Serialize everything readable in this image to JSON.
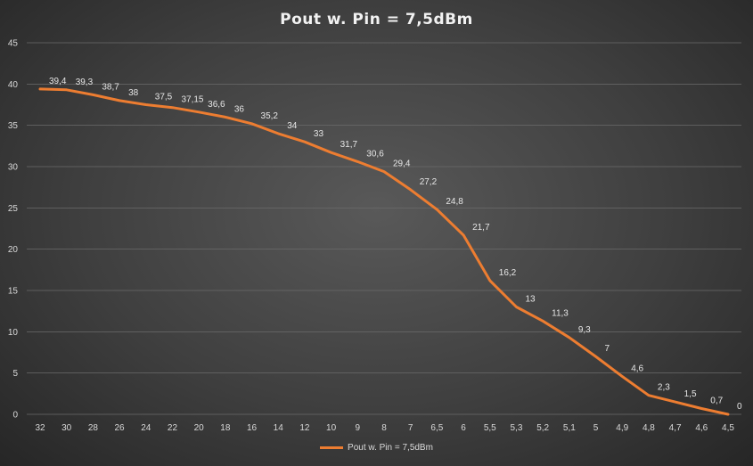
{
  "chart_data": {
    "type": "line",
    "title": "Pout  w. Pin = 7,5dBm",
    "xlabel": "",
    "ylabel": "",
    "ylim": [
      0,
      45
    ],
    "y_ticks": [
      "0",
      "5",
      "10",
      "15",
      "20",
      "25",
      "30",
      "35",
      "40",
      "45"
    ],
    "categories": [
      "32",
      "30",
      "28",
      "26",
      "24",
      "22",
      "20",
      "18",
      "16",
      "14",
      "12",
      "10",
      "9",
      "8",
      "7",
      "6,5",
      "6",
      "5,5",
      "5,3",
      "5,2",
      "5,1",
      "5",
      "4,9",
      "4,8",
      "4,7",
      "4,6",
      "4,5"
    ],
    "series": [
      {
        "name": "Pout w. Pin = 7,5dBm",
        "values": [
          39.4,
          39.3,
          38.7,
          38,
          37.5,
          37.15,
          36.6,
          36,
          35.2,
          34,
          33,
          31.7,
          30.6,
          29.4,
          27.2,
          24.8,
          21.7,
          16.2,
          13,
          11.3,
          9.3,
          7,
          4.6,
          2.3,
          1.5,
          0.7,
          0
        ],
        "labels": [
          "39,4",
          "39,3",
          "38,7",
          "38",
          "37,5",
          "37,15",
          "36,6",
          "36",
          "35,2",
          "34",
          "33",
          "31,7",
          "30,6",
          "29,4",
          "27,2",
          "24,8",
          "21,7",
          "16,2",
          "13",
          "11,3",
          "9,3",
          "7",
          "4,6",
          "2,3",
          "1,5",
          "0,7",
          "0"
        ],
        "color": "#ed7d31"
      }
    ],
    "grid": true,
    "legend_position": "bottom"
  }
}
